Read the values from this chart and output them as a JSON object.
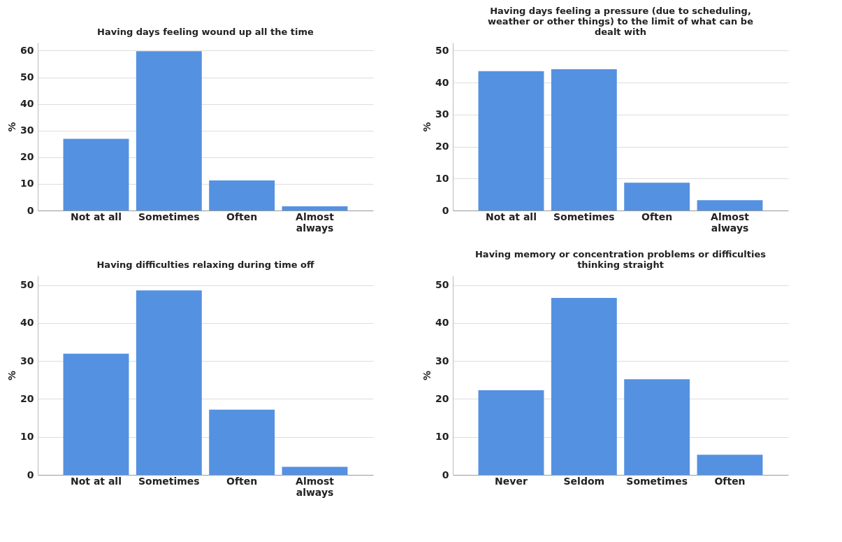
{
  "chart_data": [
    {
      "type": "bar",
      "title": "Having days feeling wound up all the time",
      "ylabel": "%",
      "categories": [
        "Not at all",
        "Sometimes",
        "Often",
        "Almost always"
      ],
      "values": [
        26.9,
        59.8,
        11.3,
        1.6
      ],
      "color": "#5591e1",
      "ylim": [
        0,
        63
      ],
      "yticks": [
        0,
        10,
        20,
        30,
        40,
        50,
        60
      ],
      "grid": "y"
    },
    {
      "type": "bar",
      "title": "Having days feeling a pressure (due to scheduling, weather or other things) to the limit of what can be dealt with",
      "ylabel": "%",
      "categories": [
        "Not at all",
        "Sometimes",
        "Often",
        "Almost always"
      ],
      "values": [
        43.6,
        44.2,
        8.7,
        3.2
      ],
      "color": "#5591e1",
      "ylim": [
        0,
        52.5
      ],
      "yticks": [
        0,
        10,
        20,
        30,
        40,
        50
      ],
      "grid": "y"
    },
    {
      "type": "bar",
      "title": "Having difficulties relaxing during time off",
      "ylabel": "%",
      "categories": [
        "Not at all",
        "Sometimes",
        "Often",
        "Almost always"
      ],
      "values": [
        31.9,
        48.6,
        17.2,
        2.1
      ],
      "color": "#5591e1",
      "ylim": [
        0,
        52.5
      ],
      "yticks": [
        0,
        10,
        20,
        30,
        40,
        50
      ],
      "grid": "y"
    },
    {
      "type": "bar",
      "title": "Having memory or concentration problems or difficulties thinking straight",
      "ylabel": "%",
      "categories": [
        "Never",
        "Seldom",
        "Sometimes",
        "Often"
      ],
      "values": [
        22.3,
        46.6,
        25.2,
        5.3
      ],
      "color": "#5591e1",
      "ylim": [
        0,
        52.5
      ],
      "yticks": [
        0,
        10,
        20,
        30,
        40,
        50
      ],
      "grid": "y"
    }
  ]
}
